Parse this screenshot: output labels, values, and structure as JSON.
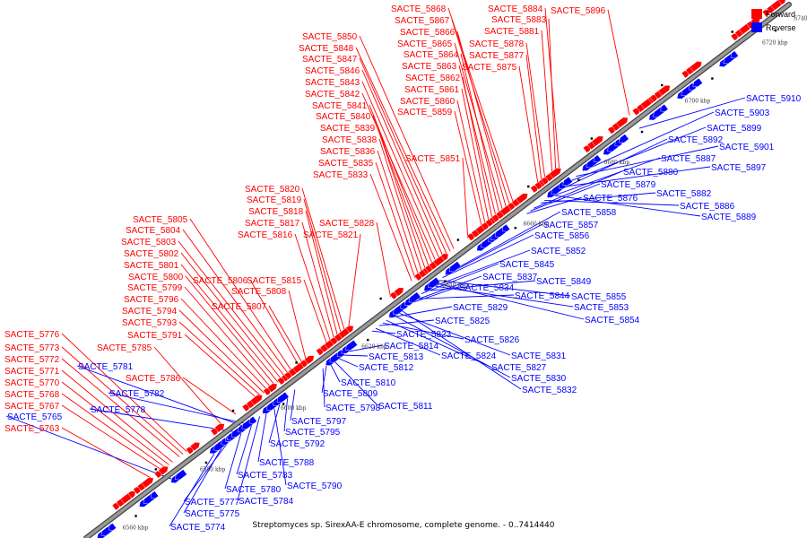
{
  "caption": "Streptomyces sp. SirexAA-E chromosome, complete genome. - 0..7414440",
  "legend": [
    {
      "label": "Forward",
      "color": "#ff0000"
    },
    {
      "label": "Reverse",
      "color": "#0000ff"
    }
  ],
  "colors": {
    "forward": "#ff0000",
    "reverse": "#0000ff",
    "axis": "#888888",
    "axis_edge": "#444444"
  },
  "ticks": [
    "6560 kbp",
    "6580 kbp",
    "6600 kbp",
    "6620 kbp",
    "6640 kbp",
    "6660 kbp",
    "6680 kbp",
    "6700 kbp",
    "6720 kbp",
    "6740 kbp"
  ],
  "forward_genes": [
    "SACTE_5763",
    "SACTE_5767",
    "SACTE_5768",
    "SACTE_5770",
    "SACTE_5771",
    "SACTE_5772",
    "SACTE_5773",
    "SACTE_5776",
    "SACTE_5785",
    "SACTE_5786",
    "SACTE_5791",
    "SACTE_5793",
    "SACTE_5794",
    "SACTE_5796",
    "SACTE_5799",
    "SACTE_5800",
    "SACTE_5801",
    "SACTE_5802",
    "SACTE_5803",
    "SACTE_5804",
    "SACTE_5805",
    "SACTE_5806",
    "SACTE_5807",
    "SACTE_5808",
    "SACTE_5815",
    "SACTE_5816",
    "SACTE_5817",
    "SACTE_5818",
    "SACTE_5819",
    "SACTE_5820",
    "SACTE_5821",
    "SACTE_5828",
    "SACTE_5833",
    "SACTE_5835",
    "SACTE_5836",
    "SACTE_5838",
    "SACTE_5839",
    "SACTE_5840",
    "SACTE_5841",
    "SACTE_5842",
    "SACTE_5843",
    "SACTE_5846",
    "SACTE_5847",
    "SACTE_5848",
    "SACTE_5850",
    "SACTE_5851",
    "SACTE_5859",
    "SACTE_5860",
    "SACTE_5861",
    "SACTE_5862",
    "SACTE_5863",
    "SACTE_5864",
    "SACTE_5865",
    "SACTE_5866",
    "SACTE_5867",
    "SACTE_5868",
    "SACTE_5875",
    "SACTE_5877",
    "SACTE_5878",
    "SACTE_5881",
    "SACTE_5883",
    "SACTE_5884",
    "SACTE_5896"
  ],
  "reverse_genes": [
    "SACTE_5765",
    "SACTE_5774",
    "SACTE_5775",
    "SACTE_5777",
    "SACTE_5778",
    "SACTE_5780",
    "SACTE_5781",
    "SACTE_5782",
    "SACTE_5783",
    "SACTE_5784",
    "SACTE_5788",
    "SACTE_5790",
    "SACTE_5792",
    "SACTE_5795",
    "SACTE_5797",
    "SACTE_5798",
    "SACTE_5809",
    "SACTE_5810",
    "SACTE_5811",
    "SACTE_5812",
    "SACTE_5813",
    "SACTE_5814",
    "SACTE_5823",
    "SACTE_5824",
    "SACTE_5825",
    "SACTE_5826",
    "SACTE_5827",
    "SACTE_5829",
    "SACTE_5830",
    "SACTE_5831",
    "SACTE_5832",
    "SACTE_5834",
    "SACTE_5837",
    "SACTE_5844",
    "SACTE_5845",
    "SACTE_5849",
    "SACTE_5852",
    "SACTE_5853",
    "SACTE_5854",
    "SACTE_5855",
    "SACTE_5856",
    "SACTE_5857",
    "SACTE_5858",
    "SACTE_5876",
    "SACTE_5879",
    "SACTE_5880",
    "SACTE_5882",
    "SACTE_5886",
    "SACTE_5887",
    "SACTE_5889",
    "SACTE_5892",
    "SACTE_5897",
    "SACTE_5899",
    "SACTE_5901",
    "SACTE_5903",
    "SACTE_5910"
  ]
}
